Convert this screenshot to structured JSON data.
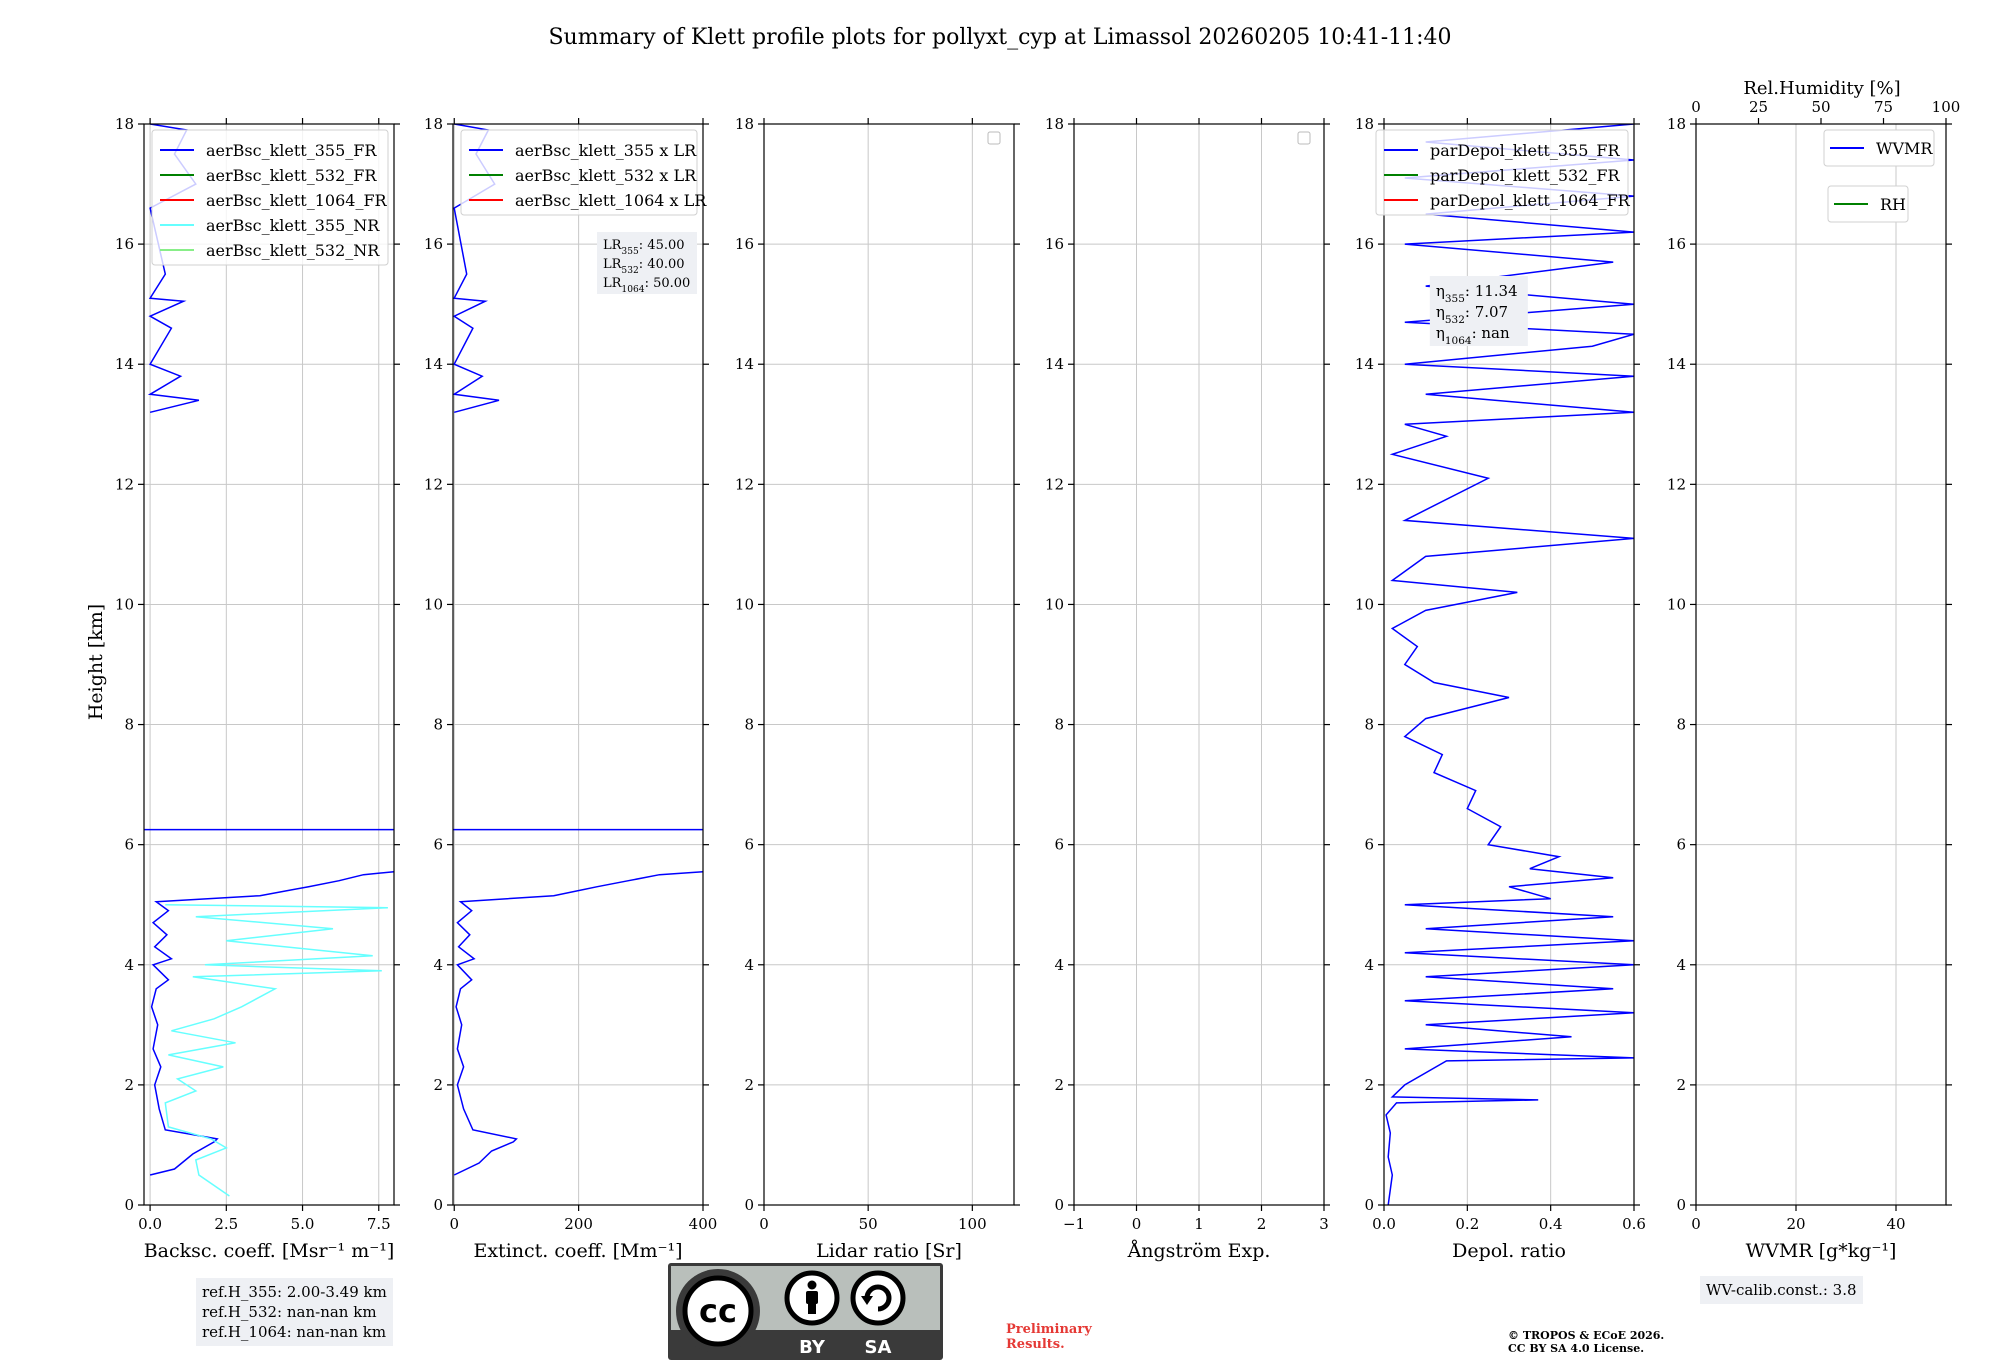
{
  "figure_title": "Summary of Klett profile plots for pollyxt_cyp at Limassol 20260205 10:41-11:40",
  "y_axis_label": "Height [km]",
  "colors": {
    "blue": "#0000ff",
    "green": "#008000",
    "red": "#ff0000",
    "cyan": "#66ffff",
    "lightgreen": "#88ee88",
    "grid": "#c8c8c8",
    "infobox": "#eef0f4"
  },
  "chart_data": [
    {
      "id": "backscatter",
      "type": "line",
      "xlabel": "Backsc. coeff. [Msr⁻¹ m⁻¹]",
      "xlim": [
        -0.2,
        8.0
      ],
      "ylim": [
        0,
        18
      ],
      "xticks": [
        0.0,
        2.5,
        5.0,
        7.5
      ],
      "xtick_labels": [
        "0.0",
        "2.5",
        "5.0",
        "7.5"
      ],
      "yticks": [
        0,
        2,
        4,
        6,
        8,
        10,
        12,
        14,
        16,
        18
      ],
      "ytick_labels": [
        "0",
        "2",
        "4",
        "6",
        "8",
        "10",
        "12",
        "14",
        "16",
        "18"
      ],
      "grid": true,
      "legend": [
        "aerBsc_klett_355_FR",
        "aerBsc_klett_532_FR",
        "aerBsc_klett_1064_FR",
        "aerBsc_klett_355_NR",
        "aerBsc_klett_532_NR"
      ],
      "legend_colors": [
        "#0000ff",
        "#008000",
        "#ff0000",
        "#66ffff",
        "#88ee88"
      ],
      "legend_position": "top-right",
      "series": [
        {
          "name": "aerBsc_klett_355_FR",
          "color": "#0000ff",
          "points": [
            [
              0.0,
              0.5
            ],
            [
              0.8,
              0.6
            ],
            [
              1.4,
              0.85
            ],
            [
              2.1,
              1.05
            ],
            [
              2.2,
              1.1
            ],
            [
              0.5,
              1.25
            ],
            [
              0.3,
              1.6
            ],
            [
              0.15,
              2.0
            ],
            [
              0.35,
              2.3
            ],
            [
              0.1,
              2.6
            ],
            [
              0.25,
              3.0
            ],
            [
              0.05,
              3.3
            ],
            [
              0.2,
              3.6
            ],
            [
              0.6,
              3.75
            ],
            [
              0.1,
              4.0
            ],
            [
              0.7,
              4.1
            ],
            [
              0.15,
              4.3
            ],
            [
              0.55,
              4.5
            ],
            [
              0.1,
              4.7
            ],
            [
              0.6,
              4.9
            ],
            [
              0.2,
              5.05
            ],
            [
              3.6,
              5.15
            ],
            [
              5.2,
              5.3
            ],
            [
              6.2,
              5.4
            ],
            [
              7.0,
              5.5
            ],
            [
              8.0,
              5.55
            ]
          ]
        },
        {
          "name": "aerBsc_klett_355_NR",
          "color": "#66ffff",
          "points": [
            [
              2.6,
              0.15
            ],
            [
              1.6,
              0.5
            ],
            [
              1.5,
              0.75
            ],
            [
              2.5,
              0.95
            ],
            [
              2.0,
              1.1
            ],
            [
              0.6,
              1.3
            ],
            [
              0.5,
              1.7
            ],
            [
              1.5,
              1.9
            ],
            [
              0.9,
              2.1
            ],
            [
              2.4,
              2.3
            ],
            [
              0.6,
              2.5
            ],
            [
              2.8,
              2.7
            ],
            [
              0.7,
              2.9
            ],
            [
              2.1,
              3.1
            ],
            [
              3.0,
              3.3
            ],
            [
              4.1,
              3.6
            ],
            [
              1.4,
              3.8
            ],
            [
              7.6,
              3.9
            ],
            [
              1.8,
              4.0
            ],
            [
              7.3,
              4.15
            ],
            [
              2.5,
              4.4
            ],
            [
              6.0,
              4.6
            ],
            [
              1.5,
              4.8
            ],
            [
              7.8,
              4.95
            ],
            [
              0.5,
              5.0
            ]
          ]
        },
        {
          "name": "aerBsc_klett_355_FR (upper)",
          "color": "#0000ff",
          "points": [
            [
              0.0,
              13.2
            ],
            [
              1.6,
              13.4
            ],
            [
              0.0,
              13.5
            ],
            [
              1.0,
              13.8
            ],
            [
              0.0,
              14.0
            ],
            [
              0.7,
              14.6
            ],
            [
              0.0,
              14.8
            ],
            [
              1.1,
              15.05
            ],
            [
              0.0,
              15.1
            ],
            [
              0.5,
              15.5
            ],
            [
              0.0,
              16.6
            ],
            [
              1.5,
              17.0
            ],
            [
              0.8,
              17.5
            ],
            [
              1.2,
              17.9
            ],
            [
              0.0,
              18.0
            ]
          ]
        }
      ],
      "hlines": [
        6.25
      ],
      "annotation": [
        "ref.H_355: 2.00-3.49 km",
        "ref.H_532: nan-nan km",
        "ref.H_1064: nan-nan km"
      ]
    },
    {
      "id": "extinction",
      "type": "line",
      "xlabel": "Extinct. coeff. [Mm⁻¹]",
      "xlim": [
        -2,
        400
      ],
      "ylim": [
        0,
        18
      ],
      "xticks": [
        0,
        200,
        400
      ],
      "xtick_labels": [
        "0",
        "200",
        "400"
      ],
      "yticks": [
        0,
        2,
        4,
        6,
        8,
        10,
        12,
        14,
        16,
        18
      ],
      "ytick_labels": [
        "0",
        "2",
        "4",
        "6",
        "8",
        "10",
        "12",
        "14",
        "16",
        "18"
      ],
      "grid": true,
      "legend": [
        "aerBsc_klett_355 x LR",
        "aerBsc_klett_532 x LR",
        "aerBsc_klett_1064 x LR"
      ],
      "legend_colors": [
        "#0000ff",
        "#008000",
        "#ff0000"
      ],
      "legend_position": "top-right",
      "series": [
        {
          "name": "aerBsc_klett_355 x LR",
          "color": "#0000ff",
          "points": [
            [
              0,
              0.5
            ],
            [
              40,
              0.7
            ],
            [
              60,
              0.9
            ],
            [
              95,
              1.05
            ],
            [
              100,
              1.1
            ],
            [
              30,
              1.25
            ],
            [
              15,
              1.6
            ],
            [
              5,
              2.0
            ],
            [
              15,
              2.3
            ],
            [
              5,
              2.6
            ],
            [
              12,
              3.0
            ],
            [
              3,
              3.3
            ],
            [
              10,
              3.6
            ],
            [
              28,
              3.75
            ],
            [
              5,
              4.0
            ],
            [
              32,
              4.1
            ],
            [
              7,
              4.3
            ],
            [
              25,
              4.5
            ],
            [
              5,
              4.7
            ],
            [
              28,
              4.9
            ],
            [
              10,
              5.05
            ],
            [
              160,
              5.15
            ],
            [
              230,
              5.3
            ],
            [
              280,
              5.4
            ],
            [
              330,
              5.5
            ],
            [
              400,
              5.55
            ]
          ]
        },
        {
          "name": "aerBsc_klett_355 x LR (upper)",
          "color": "#0000ff",
          "points": [
            [
              0,
              13.2
            ],
            [
              72,
              13.4
            ],
            [
              0,
              13.5
            ],
            [
              45,
              13.8
            ],
            [
              0,
              14.0
            ],
            [
              30,
              14.6
            ],
            [
              0,
              14.8
            ],
            [
              50,
              15.05
            ],
            [
              0,
              15.1
            ],
            [
              20,
              15.5
            ],
            [
              0,
              16.6
            ],
            [
              65,
              17.0
            ],
            [
              35,
              17.5
            ],
            [
              55,
              17.9
            ],
            [
              0,
              18.0
            ]
          ]
        }
      ],
      "hlines": [
        6.25
      ],
      "lr_labels": [
        {
          "sub": "355",
          "value": ": 45.00"
        },
        {
          "sub": "532",
          "value": ": 40.00"
        },
        {
          "sub": "1064",
          "value": ": 50.00"
        }
      ]
    },
    {
      "id": "lidar_ratio",
      "type": "line",
      "xlabel": "Lidar ratio [Sr]",
      "xlim": [
        0,
        120
      ],
      "ylim": [
        0,
        18
      ],
      "xticks": [
        0,
        50,
        100
      ],
      "xtick_labels": [
        "0",
        "50",
        "100"
      ],
      "yticks": [
        0,
        2,
        4,
        6,
        8,
        10,
        12,
        14,
        16,
        18
      ],
      "ytick_labels": [
        "0",
        "2",
        "4",
        "6",
        "8",
        "10",
        "12",
        "14",
        "16",
        "18"
      ],
      "grid": true,
      "series": [],
      "empty_legend": true
    },
    {
      "id": "angstrom",
      "type": "line",
      "xlabel": "Ångström Exp.",
      "xlim": [
        -1,
        3
      ],
      "ylim": [
        0,
        18
      ],
      "xticks": [
        -1,
        0,
        1,
        2,
        3
      ],
      "xtick_labels": [
        "−1",
        "0",
        "1",
        "2",
        "3"
      ],
      "yticks": [
        0,
        2,
        4,
        6,
        8,
        10,
        12,
        14,
        16,
        18
      ],
      "ytick_labels": [
        "0",
        "2",
        "4",
        "6",
        "8",
        "10",
        "12",
        "14",
        "16",
        "18"
      ],
      "grid": true,
      "series": [],
      "empty_legend": true
    },
    {
      "id": "depol",
      "type": "line",
      "xlabel": "Depol. ratio",
      "xlim": [
        0,
        0.6
      ],
      "ylim": [
        0,
        18
      ],
      "xticks": [
        0.0,
        0.2,
        0.4,
        0.6
      ],
      "xtick_labels": [
        "0.0",
        "0.2",
        "0.4",
        "0.6"
      ],
      "yticks": [
        0,
        2,
        4,
        6,
        8,
        10,
        12,
        14,
        16,
        18
      ],
      "ytick_labels": [
        "0",
        "2",
        "4",
        "6",
        "8",
        "10",
        "12",
        "14",
        "16",
        "18"
      ],
      "grid": true,
      "legend": [
        "parDepol_klett_355_FR",
        "parDepol_klett_532_FR",
        "parDepol_klett_1064_FR"
      ],
      "legend_colors": [
        "#0000ff",
        "#008000",
        "#ff0000"
      ],
      "legend_position": "top-right",
      "series": [
        {
          "name": "parDepol_klett_355_FR",
          "color": "#0000ff",
          "points": [
            [
              0.01,
              0.0
            ],
            [
              0.02,
              0.5
            ],
            [
              0.01,
              0.8
            ],
            [
              0.015,
              1.2
            ],
            [
              0.005,
              1.5
            ],
            [
              0.03,
              1.7
            ],
            [
              0.37,
              1.75
            ],
            [
              0.02,
              1.8
            ],
            [
              0.05,
              2.0
            ],
            [
              0.15,
              2.4
            ],
            [
              0.6,
              2.45
            ],
            [
              0.05,
              2.6
            ],
            [
              0.45,
              2.8
            ],
            [
              0.1,
              3.0
            ],
            [
              0.6,
              3.2
            ],
            [
              0.05,
              3.4
            ],
            [
              0.55,
              3.6
            ],
            [
              0.1,
              3.8
            ],
            [
              0.6,
              4.0
            ],
            [
              0.05,
              4.2
            ],
            [
              0.6,
              4.4
            ],
            [
              0.1,
              4.6
            ],
            [
              0.55,
              4.8
            ],
            [
              0.05,
              5.0
            ],
            [
              0.4,
              5.1
            ],
            [
              0.3,
              5.3
            ],
            [
              0.55,
              5.45
            ],
            [
              0.35,
              5.6
            ],
            [
              0.42,
              5.8
            ],
            [
              0.25,
              6.0
            ],
            [
              0.28,
              6.3
            ],
            [
              0.2,
              6.6
            ],
            [
              0.22,
              6.9
            ],
            [
              0.12,
              7.2
            ],
            [
              0.14,
              7.5
            ],
            [
              0.05,
              7.8
            ],
            [
              0.1,
              8.1
            ],
            [
              0.3,
              8.45
            ],
            [
              0.12,
              8.7
            ],
            [
              0.05,
              9.0
            ],
            [
              0.08,
              9.3
            ],
            [
              0.02,
              9.6
            ],
            [
              0.1,
              9.9
            ],
            [
              0.32,
              10.2
            ],
            [
              0.02,
              10.4
            ],
            [
              0.1,
              10.8
            ],
            [
              0.6,
              11.1
            ],
            [
              0.05,
              11.4
            ],
            [
              0.25,
              12.1
            ],
            [
              0.02,
              12.5
            ],
            [
              0.15,
              12.8
            ],
            [
              0.05,
              13.0
            ],
            [
              0.6,
              13.2
            ],
            [
              0.1,
              13.5
            ],
            [
              0.6,
              13.8
            ],
            [
              0.05,
              14.0
            ],
            [
              0.5,
              14.3
            ],
            [
              0.6,
              14.5
            ],
            [
              0.05,
              14.7
            ],
            [
              0.6,
              15.0
            ],
            [
              0.1,
              15.3
            ],
            [
              0.55,
              15.7
            ],
            [
              0.05,
              16.0
            ],
            [
              0.6,
              16.2
            ],
            [
              0.1,
              16.5
            ],
            [
              0.6,
              16.8
            ],
            [
              0.05,
              17.1
            ],
            [
              0.6,
              17.4
            ],
            [
              0.1,
              17.7
            ],
            [
              0.6,
              18.0
            ]
          ]
        }
      ],
      "eta_labels": [
        {
          "sub": "355",
          "value": ": 11.34"
        },
        {
          "sub": "532",
          "value": ": 7.07"
        },
        {
          "sub": "1064",
          "value": ": nan"
        }
      ]
    },
    {
      "id": "wvmr",
      "type": "line",
      "xlabel": "WVMR [g*kg⁻¹]",
      "xlim": [
        0,
        50
      ],
      "ylim": [
        0,
        18
      ],
      "xticks": [
        0,
        20,
        40
      ],
      "xtick_labels": [
        "0",
        "20",
        "40"
      ],
      "top_xlabel": "Rel.Humidity [%]",
      "top_xticks": [
        0,
        25,
        50,
        75,
        100
      ],
      "top_xtick_labels": [
        "0",
        "25",
        "50",
        "75",
        "100"
      ],
      "yticks": [
        0,
        2,
        4,
        6,
        8,
        10,
        12,
        14,
        16,
        18
      ],
      "ytick_labels": [
        "0",
        "2",
        "4",
        "6",
        "8",
        "10",
        "12",
        "14",
        "16",
        "18"
      ],
      "grid": true,
      "series": [],
      "legend": [
        "WVMR",
        "RH"
      ],
      "legend_colors": [
        "#0000ff",
        "#008000"
      ],
      "annotation": "WV-calib.const.: 3.8"
    }
  ],
  "license": {
    "cc": "cc",
    "by": "BY",
    "sa": "SA"
  },
  "preliminary": [
    "Preliminary",
    "Results."
  ],
  "copyright": [
    "© TROPOS & ECoE 2026.",
    "CC BY SA 4.0 License."
  ]
}
